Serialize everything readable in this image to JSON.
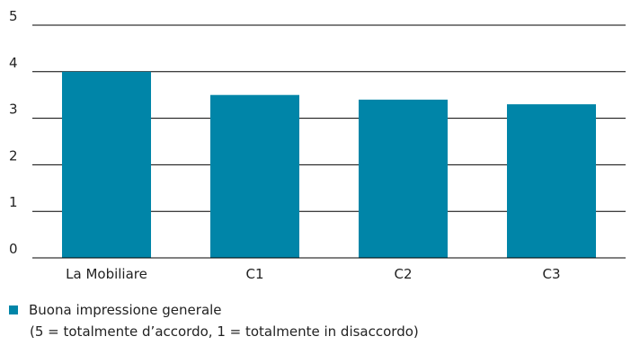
{
  "chart_data": {
    "type": "bar",
    "categories": [
      "La Mobiliare",
      "C1",
      "C2",
      "C3"
    ],
    "series": [
      {
        "name": "Buona impressione generale",
        "values": [
          4.0,
          3.5,
          3.4,
          3.3
        ]
      }
    ],
    "yticks": [
      0,
      1,
      2,
      3,
      4,
      5
    ],
    "ylim": [
      0,
      5
    ],
    "grid": true,
    "legend_position": "bottom-left",
    "colors": {
      "bar": "#0085a8",
      "grid": "#000000"
    }
  },
  "legend": {
    "label": "Buona impressione generale",
    "note": "(5 = totalmente d’accordo, 1 = totalmente in disaccordo)"
  }
}
